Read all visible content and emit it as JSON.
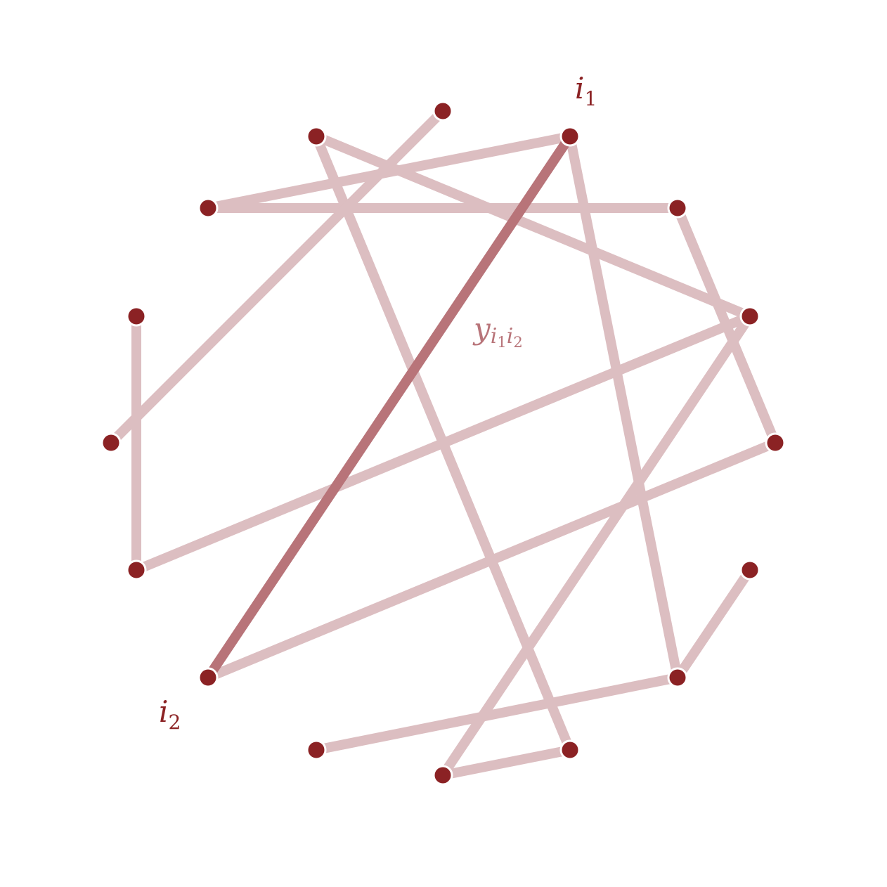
{
  "colors": {
    "node": "#8b2224",
    "edge": "#dcbec1",
    "highlight_edge": "#b87479",
    "label": "#8b2224",
    "edge_label": "#b87479"
  },
  "labels": {
    "i1": {
      "base": "i",
      "sub": "1"
    },
    "i2": {
      "base": "i",
      "sub": "2"
    },
    "edge_label": {
      "base": "y",
      "sub_base_1": "i",
      "sub_sub_1": "1",
      "sub_base_2": "i",
      "sub_sub_2": "2"
    }
  },
  "graph": {
    "nodes": [
      "n0",
      "n1",
      "n2",
      "n3",
      "n4",
      "n5",
      "n6",
      "n7",
      "n8",
      "n9",
      "n10",
      "n11",
      "n12",
      "n13",
      "n14"
    ],
    "highlighted_edge": [
      "n1",
      "n14"
    ],
    "edges": [
      [
        "n0",
        "n6"
      ],
      [
        "n1",
        "n3"
      ],
      [
        "n1",
        "n14"
      ],
      [
        "n1",
        "n10"
      ],
      [
        "n2",
        "n4"
      ],
      [
        "n2",
        "n11"
      ],
      [
        "n3",
        "n4"
      ],
      [
        "n4",
        "n7"
      ],
      [
        "n5",
        "n8"
      ],
      [
        "n6",
        "n5"
      ],
      [
        "n8",
        "n12"
      ],
      [
        "n7",
        "n14"
      ],
      [
        "n10",
        "n9"
      ],
      [
        "n10",
        "n13"
      ],
      [
        "n12",
        "n11"
      ]
    ]
  }
}
